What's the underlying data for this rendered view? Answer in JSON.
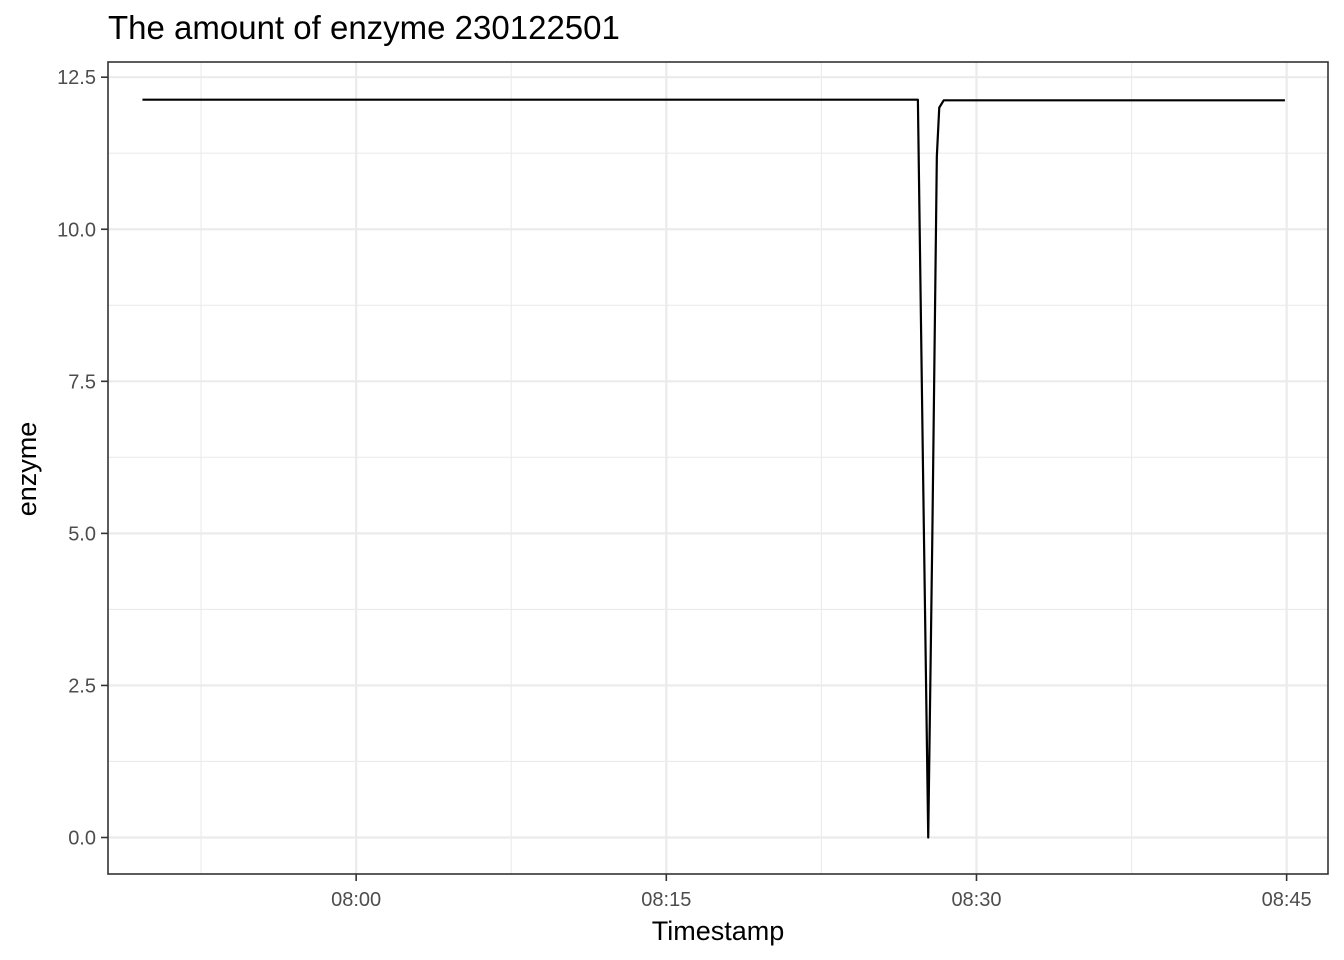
{
  "chart_data": {
    "type": "line",
    "title": "The amount of enzyme 230122501",
    "xlabel": "Timestamp",
    "ylabel": "enzyme",
    "x_unit": "time (HH:MM)",
    "xlim": [
      "07:48",
      "08:47"
    ],
    "ylim": [
      -0.6,
      12.75
    ],
    "x_ticks": [
      "08:00",
      "08:15",
      "08:30",
      "08:45"
    ],
    "y_ticks": [
      0.0,
      2.5,
      5.0,
      7.5,
      10.0,
      12.5
    ],
    "y_tick_labels": [
      "0.0",
      "2.5",
      "5.0",
      "7.5",
      "10.0",
      "12.5"
    ],
    "grid": true,
    "legend": "none",
    "series": [
      {
        "color": "#000000",
        "x": [
          "07:49:40",
          "08:27:10",
          "08:27:25",
          "08:27:40",
          "08:27:52",
          "08:28:05",
          "08:28:12",
          "08:28:25",
          "08:44:55"
        ],
        "y": [
          12.13,
          12.13,
          6.0,
          0.0,
          5.0,
          11.2,
          12.0,
          12.12,
          12.12
        ]
      }
    ]
  }
}
